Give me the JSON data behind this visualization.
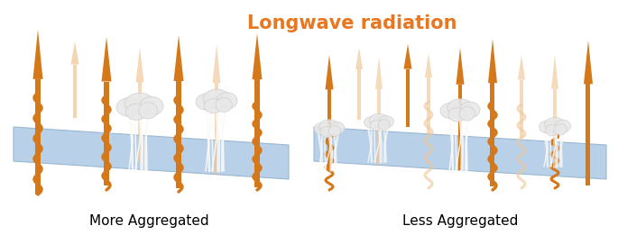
{
  "title": "Longwave radiation",
  "title_color": "#E87722",
  "title_fontsize": 15,
  "label_left": "More Aggregated",
  "label_right": "Less Aggregated",
  "label_fontsize": 11,
  "bg_color": "#ffffff",
  "surface_color": "#b8d0e8",
  "surface_edge_color": "#9ab8d0",
  "orange_arrow": "#D4781A",
  "light_arrow": "#F0C89A",
  "cloud_color": "#e8e8e8",
  "cloud_edge": "#cccccc"
}
